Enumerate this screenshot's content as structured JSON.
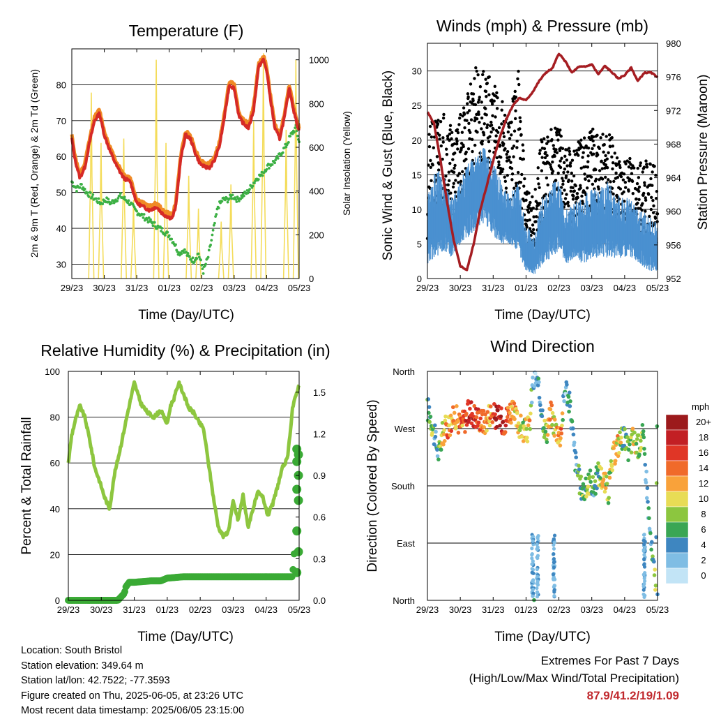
{
  "footer": {
    "location": "Location: South Bristol",
    "elevation": "Station elevation: 349.64 m",
    "latlon": "Station lat/lon: 42.7522; -77.3593",
    "created": "Figure created on Thu, 2025-06-05, at 23:26 UTC",
    "recent": "Most recent data timestamp: 2025/06/05 23:15:00",
    "extremes_title": "Extremes For Past 7 Days",
    "extremes_sub": "(High/Low/Max Wind/Total Precipitation)",
    "extremes_values": "87.9/41.2/19/1.09",
    "extremes_color": "#c0282d"
  },
  "chart_data": [
    {
      "id": "temperature",
      "type": "line",
      "title": "Temperature (F)",
      "xlabel": "Time (Day/UTC)",
      "ylabel_left": "2m & 9m T (Red, Orange) & 2m Td (Green)",
      "ylabel_right": "Solar Insolation (Yellow)",
      "x_ticks": [
        "29/23",
        "30/23",
        "31/23",
        "01/23",
        "02/23",
        "03/23",
        "04/23",
        "05/23"
      ],
      "ylim_left": [
        26,
        90
      ],
      "yticks_left": [
        30,
        40,
        50,
        60,
        70,
        80
      ],
      "ylim_right": [
        0,
        1050
      ],
      "yticks_right": [
        0,
        200,
        400,
        600,
        800,
        1000
      ],
      "grid": "horizontal",
      "series": [
        {
          "color": "#f4dc5a",
          "axis": "right",
          "style": "spikes",
          "x": [
            0.6,
            0.9,
            1.6,
            1.9,
            2.6,
            2.9,
            3.6,
            3.9,
            4.6,
            4.9,
            5.6,
            5.9,
            6.6,
            6.9
          ],
          "values": [
            850,
            620,
            640,
            360,
            1000,
            620,
            470,
            320,
            260,
            430,
            720,
            1030,
            680,
            1000
          ]
        },
        {
          "color": "#f08a24",
          "axis": "left",
          "style": "line",
          "x": [
            0,
            0.1,
            0.25,
            0.4,
            0.55,
            0.7,
            0.85,
            1.0,
            1.2,
            1.4,
            1.6,
            1.8,
            2.0,
            2.2,
            2.4,
            2.6,
            2.8,
            3.0,
            3.1,
            3.2,
            3.35,
            3.5,
            3.65,
            3.8,
            3.95,
            4.1,
            4.25,
            4.4,
            4.55,
            4.7,
            4.85,
            5.0,
            5.15,
            5.3,
            5.45,
            5.6,
            5.75,
            5.9,
            6.0,
            6.1,
            6.25,
            6.4,
            6.55,
            6.7,
            6.85,
            7.0
          ],
          "values": [
            66,
            60,
            55,
            58,
            65,
            71,
            73,
            67,
            62,
            58,
            55,
            54,
            48,
            47,
            46,
            47,
            45,
            44,
            44,
            47,
            60,
            67,
            66,
            62,
            59,
            58,
            58,
            60,
            64,
            72,
            81,
            80,
            72,
            70,
            69,
            74,
            86,
            88,
            85,
            78,
            69,
            66,
            72,
            80,
            73,
            68
          ]
        },
        {
          "color": "#d62a26",
          "axis": "left",
          "style": "line",
          "x": [
            0,
            0.1,
            0.25,
            0.4,
            0.55,
            0.7,
            0.85,
            1.0,
            1.2,
            1.4,
            1.6,
            1.8,
            2.0,
            2.2,
            2.4,
            2.6,
            2.8,
            3.0,
            3.1,
            3.2,
            3.35,
            3.5,
            3.65,
            3.8,
            3.95,
            4.1,
            4.25,
            4.4,
            4.55,
            4.7,
            4.85,
            5.0,
            5.15,
            5.3,
            5.45,
            5.6,
            5.75,
            5.9,
            6.0,
            6.1,
            6.25,
            6.4,
            6.55,
            6.7,
            6.85,
            7.0
          ],
          "values": [
            65,
            59,
            54,
            57,
            64,
            70,
            72,
            66,
            61,
            57,
            54,
            53,
            47,
            46,
            45,
            46,
            44,
            43,
            43,
            46,
            59,
            66,
            65,
            61,
            58,
            57,
            57,
            59,
            63,
            71,
            80,
            79,
            71,
            69,
            68,
            73,
            85,
            87,
            84,
            77,
            68,
            65,
            71,
            79,
            72,
            67
          ]
        },
        {
          "color": "#3cb044",
          "axis": "left",
          "style": "dots",
          "x": [
            0,
            0.15,
            0.3,
            0.45,
            0.6,
            0.75,
            0.9,
            1.05,
            1.2,
            1.35,
            1.5,
            1.65,
            1.8,
            1.95,
            2.1,
            2.25,
            2.4,
            2.55,
            2.7,
            2.85,
            3.0,
            3.15,
            3.3,
            3.45,
            3.6,
            3.75,
            3.9,
            4.05,
            4.2,
            4.35,
            4.5,
            4.65,
            4.8,
            4.95,
            5.1,
            5.25,
            5.4,
            5.55,
            5.7,
            5.85,
            6.0,
            6.15,
            6.3,
            6.45,
            6.6,
            6.75,
            6.9,
            7.0
          ],
          "values": [
            53,
            51,
            52,
            50,
            49,
            48,
            47,
            48,
            47,
            48,
            49,
            48,
            47,
            45,
            44,
            43,
            42,
            41,
            40,
            39,
            38,
            36,
            33,
            34,
            32,
            31,
            33,
            28,
            32,
            39,
            46,
            48,
            48,
            49,
            48,
            49,
            50,
            52,
            54,
            55,
            57,
            58,
            59,
            61,
            63,
            66,
            68,
            64
          ]
        }
      ]
    },
    {
      "id": "winds",
      "type": "scatter",
      "title": "Winds (mph) & Pressure (mb)",
      "xlabel": "Time (Day/UTC)",
      "ylabel_left": "Sonic Wind & Gust (Blue, Black)",
      "ylabel_right": "Station Pressure (Maroon)",
      "x_ticks": [
        "29/23",
        "30/23",
        "31/23",
        "01/23",
        "02/23",
        "03/23",
        "04/23",
        "05/23"
      ],
      "ylim_left": [
        0,
        34
      ],
      "yticks_left": [
        0,
        5,
        10,
        15,
        20,
        25,
        30
      ],
      "ylim_right": [
        952,
        980
      ],
      "yticks_right": [
        952,
        956,
        960,
        964,
        968,
        972,
        976,
        980
      ],
      "grid": "horizontal",
      "series": [
        {
          "color": "#4a90d0",
          "axis": "left",
          "style": "band",
          "x": [
            0,
            0.25,
            0.5,
            0.75,
            1.0,
            1.25,
            1.5,
            1.75,
            2.0,
            2.25,
            2.5,
            2.75,
            3.0,
            3.25,
            3.5,
            3.75,
            4.0,
            4.25,
            4.5,
            4.75,
            5.0,
            5.25,
            5.5,
            5.75,
            6.0,
            6.25,
            6.5,
            6.75,
            7.0
          ],
          "low": [
            2,
            3,
            4,
            3,
            5,
            6,
            7,
            8,
            6,
            5,
            5,
            4,
            1,
            0.5,
            2,
            3,
            4,
            2,
            3,
            2,
            3,
            3,
            3,
            3,
            3,
            3,
            2,
            1,
            1
          ],
          "high": [
            12,
            16,
            15,
            12,
            14,
            17,
            19,
            19,
            17,
            14,
            12,
            14,
            8,
            6,
            12,
            14,
            14,
            10,
            11,
            12,
            13,
            13,
            14,
            12,
            12,
            11,
            10,
            9,
            8
          ]
        },
        {
          "color": "#000000",
          "axis": "left",
          "style": "band-dots",
          "x": [
            0,
            0.25,
            0.5,
            0.75,
            1.0,
            1.25,
            1.5,
            1.75,
            2.0,
            2.25,
            2.5,
            2.75,
            3.0,
            3.25,
            3.5,
            3.75,
            4.0,
            4.25,
            4.5,
            4.75,
            5.0,
            5.25,
            5.5,
            5.75,
            6.0,
            6.25,
            6.5,
            6.75,
            7.0
          ],
          "low": [
            5,
            7,
            10,
            9,
            12,
            14,
            15,
            16,
            15,
            12,
            11,
            12,
            3,
            2,
            7,
            10,
            12,
            7,
            8,
            9,
            10,
            9,
            10,
            8,
            7,
            7,
            6,
            4,
            4
          ],
          "high": [
            21,
            24,
            25,
            22,
            24,
            28,
            31,
            30,
            29,
            26,
            23,
            32,
            13,
            12,
            22,
            23,
            22,
            20,
            19,
            21,
            24,
            21,
            22,
            19,
            18,
            17,
            17,
            17,
            16
          ]
        },
        {
          "color": "#a51d22",
          "axis": "right",
          "style": "line",
          "x": [
            0,
            0.2,
            0.4,
            0.6,
            0.8,
            1.0,
            1.2,
            1.4,
            1.6,
            1.8,
            2.0,
            2.2,
            2.4,
            2.6,
            2.8,
            3.0,
            3.2,
            3.4,
            3.6,
            3.8,
            4.0,
            4.2,
            4.4,
            4.6,
            4.8,
            5.0,
            5.2,
            5.4,
            5.6,
            5.8,
            6.0,
            6.2,
            6.4,
            6.6,
            6.8,
            7.0
          ],
          "values": [
            971.8,
            970.5,
            966,
            961,
            956.5,
            953.5,
            953,
            956,
            960,
            963,
            966,
            968.8,
            971,
            972.6,
            973.5,
            973.2,
            974.2,
            975.5,
            976.5,
            977,
            978.8,
            977.8,
            976.5,
            977.2,
            977.2,
            977.5,
            976.3,
            977.3,
            976.6,
            975.8,
            976.2,
            977.1,
            975.5,
            976.5,
            976.5,
            976
          ]
        }
      ]
    },
    {
      "id": "humidity",
      "type": "line",
      "title": "Relative Humidity (%) & Precipitation (in)",
      "xlabel": "Time (Day/UTC)",
      "ylabel_left": "Percent & Total Rainfall",
      "x_ticks": [
        "29/23",
        "30/23",
        "31/23",
        "01/23",
        "02/23",
        "03/23",
        "04/23",
        "05/23"
      ],
      "ylim_left": [
        0,
        100
      ],
      "yticks_left": [
        0,
        20,
        40,
        60,
        80,
        100
      ],
      "ylim_right": [
        0,
        1.65
      ],
      "yticks_right": [
        "0.0",
        "0.3",
        "0.6",
        "0.9",
        "1.2",
        "1.5"
      ],
      "grid": "horizontal",
      "series": [
        {
          "color": "#8dc63f",
          "axis": "left",
          "style": "line",
          "x": [
            0,
            0.1,
            0.2,
            0.35,
            0.5,
            0.65,
            0.8,
            0.95,
            1.1,
            1.25,
            1.4,
            1.6,
            1.8,
            2.0,
            2.2,
            2.4,
            2.6,
            2.8,
            3.0,
            3.1,
            3.2,
            3.35,
            3.5,
            3.65,
            3.8,
            3.95,
            4.1,
            4.25,
            4.4,
            4.55,
            4.7,
            4.85,
            5.0,
            5.15,
            5.3,
            5.45,
            5.6,
            5.75,
            5.9,
            6.05,
            6.2,
            6.35,
            6.5,
            6.65,
            6.8,
            6.95,
            7.0
          ],
          "values": [
            60,
            72,
            78,
            85,
            80,
            70,
            58,
            52,
            45,
            40,
            55,
            68,
            82,
            95,
            86,
            82,
            80,
            83,
            77,
            85,
            88,
            95,
            90,
            84,
            82,
            78,
            75,
            60,
            45,
            32,
            28,
            30,
            43,
            35,
            46,
            32,
            40,
            47,
            45,
            37,
            42,
            50,
            58,
            62,
            84,
            92,
            94
          ]
        },
        {
          "color": "#3aaa35",
          "axis": "right",
          "style": "step-dots",
          "x": [
            0,
            0.5,
            1.0,
            1.5,
            1.7,
            1.75,
            1.85,
            2.0,
            2.5,
            2.8,
            3.0,
            3.5,
            4.0,
            4.5,
            5.0,
            5.5,
            6.0,
            6.5,
            6.8,
            6.9,
            6.95,
            7.0
          ],
          "values": [
            0,
            0,
            0,
            0,
            0.05,
            0.1,
            0.13,
            0.13,
            0.14,
            0.14,
            0.16,
            0.17,
            0.17,
            0.17,
            0.17,
            0.17,
            0.17,
            0.17,
            0.17,
            0.5,
            0.9,
            1.09
          ]
        }
      ]
    },
    {
      "id": "direction",
      "type": "scatter",
      "title": "Wind Direction",
      "xlabel": "Time (Day/UTC)",
      "ylabel_left": "Direction (Colored By Speed)",
      "x_ticks": [
        "29/23",
        "30/23",
        "31/23",
        "01/23",
        "02/23",
        "03/23",
        "04/23",
        "05/23"
      ],
      "ylim_left": [
        0,
        360
      ],
      "ytick_labels": [
        "North",
        "East",
        "South",
        "West",
        "North"
      ],
      "ytick_values": [
        0,
        90,
        180,
        270,
        360
      ],
      "grid": "horizontal",
      "colorbar": {
        "label": "mph",
        "labels": [
          "20+",
          "18",
          "16",
          "14",
          "12",
          "10",
          "8",
          "6",
          "4",
          "2",
          "0"
        ],
        "colors": [
          "#9c1a1c",
          "#c21f24",
          "#e03626",
          "#f06a2a",
          "#f9a23a",
          "#e8dc55",
          "#8cc63f",
          "#3aa654",
          "#3e86c0",
          "#7fbde4",
          "#c2e4f6"
        ]
      },
      "series": [
        {
          "name_speed_mph": "points",
          "x": [
            0.05,
            0.15,
            0.25,
            0.35,
            0.45,
            0.55,
            0.7,
            0.85,
            1.0,
            1.15,
            1.3,
            1.45,
            1.6,
            1.75,
            1.9,
            2.05,
            2.2,
            2.35,
            2.5,
            2.65,
            2.8,
            2.95,
            3.1,
            3.2,
            3.3,
            3.45,
            3.6,
            3.75,
            3.9,
            4.05,
            4.2,
            4.35,
            4.5,
            4.65,
            4.8,
            4.95,
            5.05,
            5.2,
            5.35,
            5.5,
            5.65,
            5.8,
            5.95,
            6.1,
            6.25,
            6.4,
            6.55,
            6.65,
            6.75,
            6.85,
            6.95,
            7.0
          ],
          "values": [
            300,
            275,
            250,
            230,
            260,
            270,
            280,
            290,
            275,
            285,
            300,
            290,
            285,
            280,
            295,
            290,
            285,
            280,
            300,
            290,
            275,
            265,
            270,
            340,
            350,
            310,
            260,
            295,
            270,
            260,
            340,
            300,
            220,
            180,
            170,
            190,
            175,
            200,
            190,
            170,
            225,
            245,
            260,
            235,
            255,
            240,
            260,
            200,
            120,
            60,
            30,
            350
          ],
          "speed": [
            6,
            8,
            4,
            5,
            9,
            12,
            14,
            12,
            13,
            15,
            18,
            16,
            14,
            13,
            12,
            18,
            20,
            16,
            14,
            12,
            10,
            8,
            12,
            3,
            2,
            6,
            8,
            12,
            10,
            14,
            2,
            5,
            4,
            6,
            7,
            8,
            5,
            7,
            10,
            8,
            9,
            11,
            6,
            7,
            10,
            9,
            8,
            4,
            3,
            5,
            8,
            3
          ]
        }
      ]
    }
  ]
}
